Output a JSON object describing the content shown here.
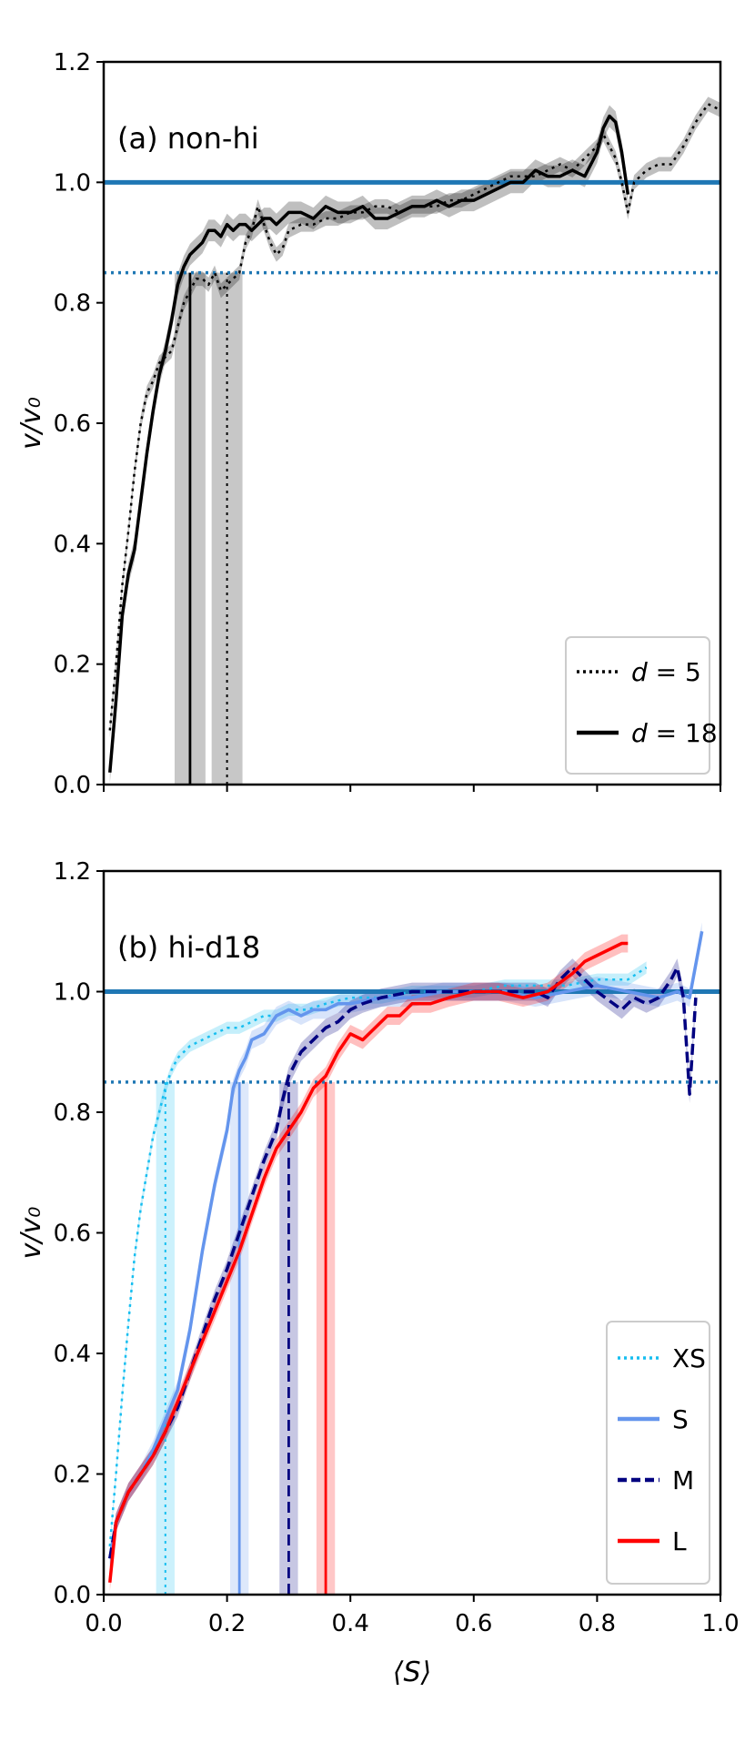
{
  "chart_data": [
    {
      "type": "line",
      "panel_label": "(a)  non-hi",
      "xlabel": "⟨S⟩",
      "ylabel": "v/v₀",
      "xlim": [
        0,
        1
      ],
      "ylim": [
        0,
        1.2
      ],
      "xticks": [
        0.0,
        0.2,
        0.4,
        0.6,
        0.8,
        1.0
      ],
      "yticks": [
        0.0,
        0.2,
        0.4,
        0.6,
        0.8,
        1.0,
        1.2
      ],
      "show_x_ticklabels": false,
      "reference_lines": [
        {
          "y": 1.0,
          "style": "solid",
          "color": "#1f77b4"
        },
        {
          "y": 0.85,
          "style": "dotted",
          "color": "#1f77b4"
        }
      ],
      "legend": {
        "position": "bottom-right",
        "entries": [
          {
            "prefix": "d",
            "value": " = 5",
            "series": 0
          },
          {
            "prefix": "d",
            "value": " = 18",
            "series": 1
          }
        ]
      },
      "series": [
        {
          "name": "d = 5",
          "color": "#000000",
          "style": "dotted",
          "width": 2.5,
          "band": 0.012,
          "threshold": {
            "x": 0.2,
            "band": [
              0.175,
              0.225
            ]
          },
          "x": [
            0.01,
            0.02,
            0.03,
            0.04,
            0.05,
            0.06,
            0.07,
            0.08,
            0.09,
            0.1,
            0.11,
            0.12,
            0.13,
            0.14,
            0.15,
            0.16,
            0.17,
            0.18,
            0.19,
            0.2,
            0.21,
            0.22,
            0.23,
            0.24,
            0.25,
            0.26,
            0.27,
            0.28,
            0.29,
            0.3,
            0.32,
            0.34,
            0.36,
            0.38,
            0.4,
            0.42,
            0.44,
            0.46,
            0.48,
            0.5,
            0.52,
            0.54,
            0.56,
            0.58,
            0.6,
            0.62,
            0.64,
            0.66,
            0.68,
            0.7,
            0.72,
            0.74,
            0.76,
            0.78,
            0.8,
            0.81,
            0.82,
            0.83,
            0.84,
            0.85,
            0.86,
            0.88,
            0.9,
            0.92,
            0.94,
            0.96,
            0.98,
            1.0
          ],
          "y": [
            0.09,
            0.2,
            0.33,
            0.42,
            0.52,
            0.6,
            0.65,
            0.67,
            0.7,
            0.71,
            0.72,
            0.76,
            0.8,
            0.82,
            0.84,
            0.84,
            0.83,
            0.85,
            0.82,
            0.83,
            0.84,
            0.85,
            0.9,
            0.92,
            0.96,
            0.93,
            0.9,
            0.88,
            0.89,
            0.92,
            0.93,
            0.93,
            0.94,
            0.94,
            0.95,
            0.95,
            0.96,
            0.96,
            0.95,
            0.96,
            0.96,
            0.96,
            0.97,
            0.97,
            0.98,
            0.99,
            1.0,
            1.01,
            1.01,
            1.01,
            1.02,
            1.03,
            1.02,
            1.04,
            1.06,
            1.08,
            1.06,
            1.04,
            1.0,
            0.95,
            1.0,
            1.02,
            1.03,
            1.03,
            1.06,
            1.1,
            1.13,
            1.12
          ]
        },
        {
          "name": "d = 18",
          "color": "#000000",
          "style": "solid",
          "width": 3.5,
          "band": 0.018,
          "threshold": {
            "x": 0.14,
            "band": [
              0.115,
              0.165
            ]
          },
          "x": [
            0.01,
            0.02,
            0.03,
            0.04,
            0.05,
            0.06,
            0.07,
            0.08,
            0.09,
            0.1,
            0.11,
            0.12,
            0.13,
            0.14,
            0.15,
            0.16,
            0.17,
            0.18,
            0.19,
            0.2,
            0.21,
            0.22,
            0.23,
            0.24,
            0.25,
            0.26,
            0.27,
            0.28,
            0.29,
            0.3,
            0.32,
            0.34,
            0.36,
            0.38,
            0.4,
            0.42,
            0.44,
            0.46,
            0.48,
            0.5,
            0.52,
            0.54,
            0.56,
            0.58,
            0.6,
            0.62,
            0.64,
            0.66,
            0.68,
            0.7,
            0.72,
            0.74,
            0.76,
            0.78,
            0.8,
            0.81,
            0.82,
            0.83,
            0.84,
            0.85
          ],
          "y": [
            0.02,
            0.14,
            0.28,
            0.35,
            0.39,
            0.47,
            0.55,
            0.62,
            0.68,
            0.72,
            0.77,
            0.83,
            0.86,
            0.88,
            0.89,
            0.9,
            0.92,
            0.92,
            0.91,
            0.93,
            0.92,
            0.93,
            0.93,
            0.92,
            0.93,
            0.94,
            0.94,
            0.93,
            0.94,
            0.95,
            0.95,
            0.94,
            0.96,
            0.95,
            0.95,
            0.96,
            0.94,
            0.94,
            0.95,
            0.96,
            0.96,
            0.97,
            0.96,
            0.97,
            0.97,
            0.98,
            0.99,
            1.0,
            1.0,
            1.02,
            1.01,
            1.01,
            1.02,
            1.01,
            1.05,
            1.09,
            1.11,
            1.1,
            1.05,
            0.98
          ]
        }
      ]
    },
    {
      "type": "line",
      "panel_label": "(b)  hi-d18",
      "xlabel": "⟨S⟩",
      "ylabel": "v/v₀",
      "xlim": [
        0,
        1
      ],
      "ylim": [
        0,
        1.2
      ],
      "xticks": [
        0.0,
        0.2,
        0.4,
        0.6,
        0.8,
        1.0
      ],
      "yticks": [
        0.0,
        0.2,
        0.4,
        0.6,
        0.8,
        1.0,
        1.2
      ],
      "show_x_ticklabels": true,
      "reference_lines": [
        {
          "y": 1.0,
          "style": "solid",
          "color": "#1f77b4"
        },
        {
          "y": 0.85,
          "style": "dotted",
          "color": "#1f77b4"
        }
      ],
      "legend": {
        "position": "bottom-right",
        "entries": [
          {
            "prefix": "",
            "value": "XS",
            "series": 0
          },
          {
            "prefix": "",
            "value": "S",
            "series": 1
          },
          {
            "prefix": "",
            "value": "M",
            "series": 2
          },
          {
            "prefix": "",
            "value": "L",
            "series": 3
          }
        ]
      },
      "series": [
        {
          "name": "XS",
          "color": "#17bef0",
          "style": "dotted",
          "width": 2.5,
          "band": 0.01,
          "threshold": {
            "x": 0.1,
            "band": [
              0.085,
              0.115
            ]
          },
          "x": [
            0.01,
            0.02,
            0.03,
            0.04,
            0.05,
            0.06,
            0.07,
            0.08,
            0.09,
            0.1,
            0.11,
            0.12,
            0.14,
            0.16,
            0.18,
            0.2,
            0.22,
            0.24,
            0.26,
            0.28,
            0.3,
            0.33,
            0.36,
            0.4,
            0.45,
            0.5,
            0.55,
            0.6,
            0.65,
            0.7,
            0.75,
            0.8,
            0.85,
            0.88
          ],
          "y": [
            0.08,
            0.2,
            0.33,
            0.45,
            0.56,
            0.64,
            0.7,
            0.76,
            0.8,
            0.84,
            0.87,
            0.89,
            0.91,
            0.92,
            0.93,
            0.94,
            0.94,
            0.95,
            0.96,
            0.96,
            0.97,
            0.97,
            0.98,
            0.99,
            0.99,
            1.0,
            1.0,
            1.0,
            1.01,
            1.01,
            1.01,
            1.02,
            1.02,
            1.04
          ]
        },
        {
          "name": "S",
          "color": "#6495ed",
          "style": "solid",
          "width": 3.5,
          "band": 0.015,
          "threshold": {
            "x": 0.22,
            "band": [
              0.205,
              0.235
            ]
          },
          "x": [
            0.01,
            0.02,
            0.04,
            0.06,
            0.08,
            0.1,
            0.12,
            0.14,
            0.16,
            0.18,
            0.2,
            0.21,
            0.22,
            0.23,
            0.24,
            0.26,
            0.28,
            0.3,
            0.32,
            0.34,
            0.36,
            0.38,
            0.4,
            0.45,
            0.5,
            0.55,
            0.6,
            0.65,
            0.7,
            0.75,
            0.8,
            0.85,
            0.9,
            0.93,
            0.95,
            0.97
          ],
          "y": [
            0.06,
            0.12,
            0.17,
            0.2,
            0.24,
            0.29,
            0.34,
            0.44,
            0.57,
            0.68,
            0.77,
            0.84,
            0.87,
            0.89,
            0.92,
            0.93,
            0.96,
            0.97,
            0.96,
            0.97,
            0.97,
            0.98,
            0.98,
            0.99,
            0.99,
            1.0,
            1.0,
            1.0,
            0.99,
            1.0,
            1.01,
            1.0,
            0.99,
            1.0,
            0.99,
            1.1
          ]
        },
        {
          "name": "M",
          "color": "#000080",
          "style": "dashed",
          "width": 3.5,
          "band": 0.015,
          "threshold": {
            "x": 0.3,
            "band": [
              0.285,
              0.315
            ]
          },
          "x": [
            0.01,
            0.02,
            0.04,
            0.06,
            0.08,
            0.1,
            0.12,
            0.14,
            0.16,
            0.18,
            0.2,
            0.22,
            0.24,
            0.26,
            0.28,
            0.29,
            0.3,
            0.31,
            0.32,
            0.34,
            0.36,
            0.38,
            0.4,
            0.42,
            0.45,
            0.5,
            0.55,
            0.6,
            0.65,
            0.7,
            0.72,
            0.74,
            0.76,
            0.8,
            0.84,
            0.86,
            0.88,
            0.9,
            0.92,
            0.93,
            0.94,
            0.95,
            0.96
          ],
          "y": [
            0.06,
            0.12,
            0.17,
            0.2,
            0.23,
            0.27,
            0.31,
            0.37,
            0.43,
            0.49,
            0.54,
            0.6,
            0.66,
            0.72,
            0.77,
            0.82,
            0.86,
            0.88,
            0.9,
            0.92,
            0.94,
            0.95,
            0.97,
            0.98,
            0.99,
            1.0,
            1.0,
            1.0,
            1.0,
            1.0,
            0.99,
            1.02,
            1.04,
            1.0,
            0.97,
            0.99,
            0.98,
            0.99,
            1.02,
            1.04,
            0.99,
            0.83,
            0.99
          ]
        },
        {
          "name": "L",
          "color": "#ff0000",
          "style": "solid",
          "width": 3.5,
          "band": 0.015,
          "threshold": {
            "x": 0.36,
            "band": [
              0.345,
              0.375
            ]
          },
          "x": [
            0.01,
            0.02,
            0.04,
            0.06,
            0.08,
            0.1,
            0.12,
            0.14,
            0.16,
            0.18,
            0.2,
            0.22,
            0.24,
            0.26,
            0.28,
            0.3,
            0.32,
            0.34,
            0.36,
            0.38,
            0.4,
            0.42,
            0.44,
            0.46,
            0.48,
            0.5,
            0.53,
            0.56,
            0.6,
            0.64,
            0.68,
            0.72,
            0.76,
            0.78,
            0.8,
            0.82,
            0.84,
            0.85
          ],
          "y": [
            0.02,
            0.12,
            0.17,
            0.2,
            0.23,
            0.27,
            0.32,
            0.37,
            0.42,
            0.47,
            0.52,
            0.57,
            0.63,
            0.69,
            0.74,
            0.77,
            0.8,
            0.84,
            0.86,
            0.9,
            0.93,
            0.92,
            0.94,
            0.96,
            0.96,
            0.98,
            0.98,
            0.99,
            1.0,
            1.0,
            0.99,
            1.0,
            1.03,
            1.05,
            1.06,
            1.07,
            1.08,
            1.08
          ]
        }
      ]
    }
  ]
}
